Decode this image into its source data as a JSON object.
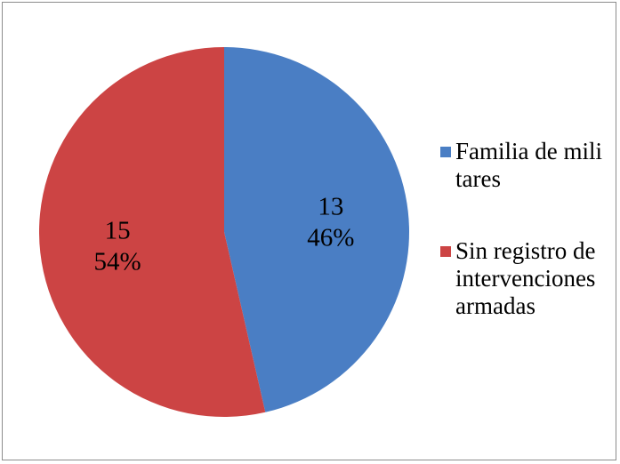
{
  "chart_data": {
    "type": "pie",
    "title": "",
    "categories": [
      "Familia de militares",
      "Sin registro de intervenciones armadas"
    ],
    "values": [
      13,
      15
    ],
    "percent_labels": [
      "46%",
      "54%"
    ],
    "colors": [
      "#4a7ec4",
      "#cc4444"
    ],
    "legend_position": "right",
    "start_angle": "top, clockwise"
  }
}
